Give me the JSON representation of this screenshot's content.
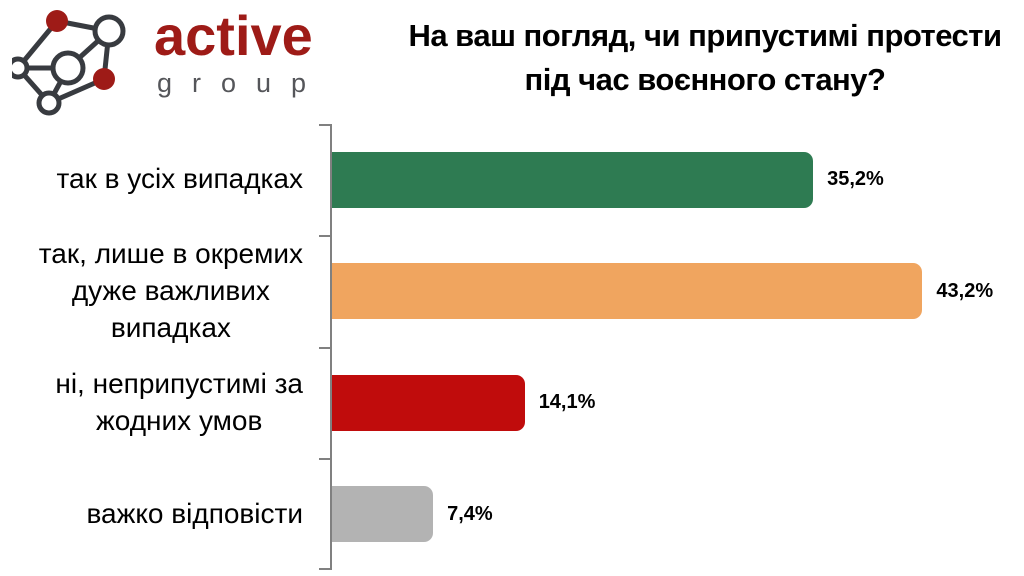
{
  "logo": {
    "brand": "active",
    "sub": "group",
    "brand_color": "#9E1B17",
    "sub_color": "#55565A",
    "icon": "network-graph-icon",
    "icon_node_red": "#9E1B17",
    "icon_stroke": "#383B40"
  },
  "title": {
    "line1": "На ваш погляд, чи припустимі протести",
    "line2": "під час воєнного стану?"
  },
  "chart_data": {
    "type": "bar",
    "orientation": "horizontal",
    "title": "На ваш погляд, чи припустимі протести під час воєнного стану?",
    "categories": [
      "так в усіх випадках",
      "так, лише в окремих дуже важливих випадках",
      "ні, неприпустимі за жодних умов",
      "важко відповісти"
    ],
    "category_display": [
      "так в усіх випадках",
      "так, лише в окремих\nдуже важливих\nвипадках",
      "ні, неприпустимі за\nжодних умов",
      "важко відповісти"
    ],
    "values": [
      35.2,
      43.2,
      14.1,
      7.4
    ],
    "value_labels": [
      "35,2%",
      "43,2%",
      "14,1%",
      "7,4%"
    ],
    "bar_colors": [
      "#2E7B52",
      "#F0A55F",
      "#C00C0C",
      "#B3B3B3"
    ],
    "xlim": [
      0,
      45
    ],
    "xlabel": "",
    "ylabel": "",
    "grid": false,
    "legend": "none",
    "axis_color": "#808080",
    "value_label_position": "end-of-bar"
  }
}
